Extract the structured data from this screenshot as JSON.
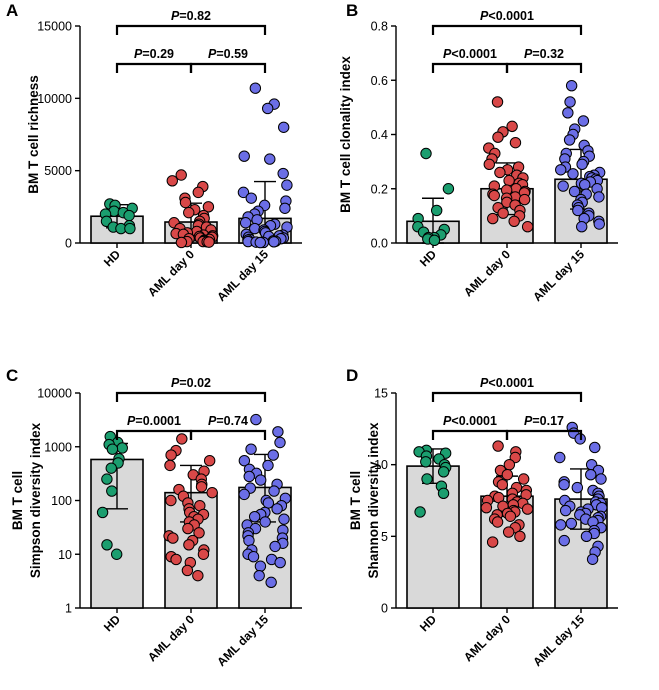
{
  "colors": {
    "HD": "#1b9e6f",
    "AML day 0": "#d94848",
    "AML day 15": "#6b6ee6",
    "bar": "#d9d9d9"
  },
  "chart_data": [
    {
      "panel": "A",
      "type": "bar",
      "scale": "linear",
      "ylabel": [
        "BM T cell richness"
      ],
      "ylim": [
        0,
        15000
      ],
      "yticks": [
        0,
        5000,
        10000,
        15000
      ],
      "ytick_labels": [
        "0",
        "5000",
        "10000",
        "15000"
      ],
      "categories": [
        "HD",
        "AML day 0",
        "AML day 15"
      ],
      "means": [
        1850,
        1450,
        1700
      ],
      "sd": [
        800,
        1300,
        2550
      ],
      "points": [
        [
          2700,
          2600,
          2400,
          2200,
          2100,
          2000,
          1900,
          1500,
          1200,
          1100,
          1000,
          1000
        ],
        [
          4700,
          4300,
          3900,
          3500,
          3100,
          2800,
          2500,
          2300,
          2100,
          1900,
          1700,
          1500,
          1400,
          1300,
          1200,
          1100,
          1000,
          900,
          800,
          700,
          650,
          600,
          550,
          500,
          450,
          400,
          350,
          300,
          250,
          200,
          150,
          100,
          100,
          80,
          60,
          40
        ],
        [
          10700,
          9600,
          9300,
          8000,
          6000,
          5800,
          4800,
          4000,
          3500,
          3100,
          2900,
          2600,
          2400,
          2200,
          2000,
          1800,
          1600,
          1400,
          1300,
          1200,
          1100,
          1000,
          900,
          800,
          700,
          600,
          550,
          500,
          450,
          400,
          350,
          300,
          250,
          200,
          150,
          120,
          100,
          80,
          60,
          50,
          40,
          30
        ]
      ],
      "comparisons": [
        {
          "from": 0,
          "to": 1,
          "level": 0,
          "label": "P=0.29"
        },
        {
          "from": 1,
          "to": 2,
          "level": 0,
          "label": "P=0.59"
        },
        {
          "from": 0,
          "to": 2,
          "level": 1,
          "label": "P=0.82"
        }
      ]
    },
    {
      "panel": "B",
      "type": "bar",
      "scale": "linear",
      "ylabel": [
        "BM T cell clonality index"
      ],
      "ylim": [
        0,
        0.8
      ],
      "yticks": [
        0,
        0.2,
        0.4,
        0.6,
        0.8
      ],
      "ytick_labels": [
        "0.0",
        "0.2",
        "0.4",
        "0.6",
        "0.8"
      ],
      "categories": [
        "HD",
        "AML day 0",
        "AML day 15"
      ],
      "means": [
        0.08,
        0.2,
        0.235
      ],
      "sd": [
        0.085,
        0.095,
        0.11
      ],
      "points": [
        [
          0.33,
          0.2,
          0.12,
          0.09,
          0.06,
          0.05,
          0.04,
          0.03,
          0.02,
          0.02,
          0.015,
          0.01
        ],
        [
          0.52,
          0.43,
          0.41,
          0.39,
          0.37,
          0.35,
          0.33,
          0.31,
          0.29,
          0.28,
          0.27,
          0.26,
          0.25,
          0.24,
          0.23,
          0.22,
          0.215,
          0.21,
          0.2,
          0.195,
          0.19,
          0.185,
          0.18,
          0.175,
          0.17,
          0.165,
          0.16,
          0.15,
          0.14,
          0.13,
          0.12,
          0.11,
          0.1,
          0.09,
          0.08,
          0.06
        ],
        [
          0.58,
          0.52,
          0.48,
          0.45,
          0.42,
          0.4,
          0.38,
          0.36,
          0.34,
          0.33,
          0.32,
          0.31,
          0.3,
          0.29,
          0.28,
          0.27,
          0.26,
          0.255,
          0.25,
          0.245,
          0.24,
          0.235,
          0.23,
          0.225,
          0.22,
          0.215,
          0.21,
          0.2,
          0.19,
          0.18,
          0.17,
          0.16,
          0.15,
          0.14,
          0.13,
          0.12,
          0.11,
          0.1,
          0.09,
          0.08,
          0.07,
          0.06
        ]
      ],
      "comparisons": [
        {
          "from": 0,
          "to": 1,
          "level": 0,
          "label": "P<0.0001"
        },
        {
          "from": 1,
          "to": 2,
          "level": 0,
          "label": "P=0.32"
        },
        {
          "from": 0,
          "to": 2,
          "level": 1,
          "label": "P<0.0001"
        }
      ]
    },
    {
      "panel": "C",
      "type": "bar",
      "scale": "log",
      "ylabel": [
        "BM T cell",
        "Simpson diversity index"
      ],
      "ylim": [
        1,
        10000
      ],
      "yticks": [
        1,
        10,
        100,
        1000,
        10000
      ],
      "ytick_labels": [
        "1",
        "10",
        "100",
        "1000",
        "10000"
      ],
      "categories": [
        "HD",
        "AML day 0",
        "AML day 15"
      ],
      "means": [
        580,
        140,
        175
      ],
      "err_low": [
        70,
        40,
        40
      ],
      "err_high": [
        1150,
        450,
        720
      ],
      "points": [
        [
          1550,
          1200,
          1100,
          950,
          900,
          600,
          500,
          400,
          250,
          150,
          60,
          15,
          10
        ],
        [
          1400,
          850,
          700,
          550,
          450,
          350,
          300,
          250,
          200,
          180,
          160,
          140,
          120,
          100,
          90,
          80,
          70,
          60,
          55,
          50,
          45,
          40,
          35,
          30,
          25,
          22,
          20,
          18,
          15,
          12,
          10,
          9,
          8,
          7,
          5,
          4
        ],
        [
          3200,
          1900,
          1200,
          900,
          700,
          550,
          450,
          380,
          320,
          280,
          240,
          200,
          170,
          150,
          130,
          110,
          100,
          90,
          80,
          70,
          60,
          55,
          50,
          45,
          40,
          35,
          30,
          28,
          25,
          22,
          20,
          18,
          16,
          14,
          12,
          10,
          9,
          8,
          7,
          6,
          4,
          3
        ]
      ],
      "comparisons": [
        {
          "from": 0,
          "to": 1,
          "level": 0,
          "label": "P=0.0001"
        },
        {
          "from": 1,
          "to": 2,
          "level": 0,
          "label": "P=0.74"
        },
        {
          "from": 0,
          "to": 2,
          "level": 1,
          "label": "P=0.02"
        }
      ]
    },
    {
      "panel": "D",
      "type": "bar",
      "scale": "linear",
      "ylabel": [
        "BM T cell",
        "Shannon diversity index"
      ],
      "ylim": [
        0,
        15
      ],
      "yticks": [
        0,
        5,
        10,
        15
      ],
      "ytick_labels": [
        "0",
        "5",
        "10",
        "15"
      ],
      "categories": [
        "HD",
        "AML day 0",
        "AML day 15"
      ],
      "means": [
        9.9,
        7.8,
        7.6
      ],
      "sd": [
        1.2,
        1.4,
        2.1
      ],
      "points": [
        [
          11.0,
          10.9,
          10.8,
          10.6,
          10.4,
          10.2,
          10.0,
          9.8,
          9.5,
          9.0,
          8.5,
          8.0,
          6.7
        ],
        [
          11.3,
          10.9,
          10.5,
          10.0,
          9.6,
          9.3,
          9.0,
          8.8,
          8.6,
          8.4,
          8.2,
          8.0,
          7.9,
          7.8,
          7.7,
          7.6,
          7.5,
          7.4,
          7.3,
          7.2,
          7.1,
          7.0,
          6.9,
          6.8,
          6.7,
          6.6,
          6.5,
          6.4,
          6.2,
          6.0,
          5.8,
          5.6,
          5.3,
          5.0,
          4.6
        ],
        [
          12.6,
          12.2,
          11.8,
          11.2,
          10.5,
          10.0,
          9.6,
          9.3,
          9.0,
          8.8,
          8.6,
          8.4,
          8.2,
          8.0,
          7.8,
          7.6,
          7.5,
          7.4,
          7.3,
          7.2,
          7.1,
          7.0,
          6.9,
          6.8,
          6.7,
          6.6,
          6.5,
          6.4,
          6.3,
          6.2,
          6.1,
          6.0,
          5.9,
          5.8,
          5.6,
          5.4,
          5.2,
          5.0,
          4.7,
          4.3,
          3.9,
          3.4
        ]
      ],
      "comparisons": [
        {
          "from": 0,
          "to": 1,
          "level": 0,
          "label": "P<0.0001"
        },
        {
          "from": 1,
          "to": 2,
          "level": 0,
          "label": "P=0.17"
        },
        {
          "from": 0,
          "to": 2,
          "level": 1,
          "label": "P<0.0001"
        }
      ]
    }
  ]
}
